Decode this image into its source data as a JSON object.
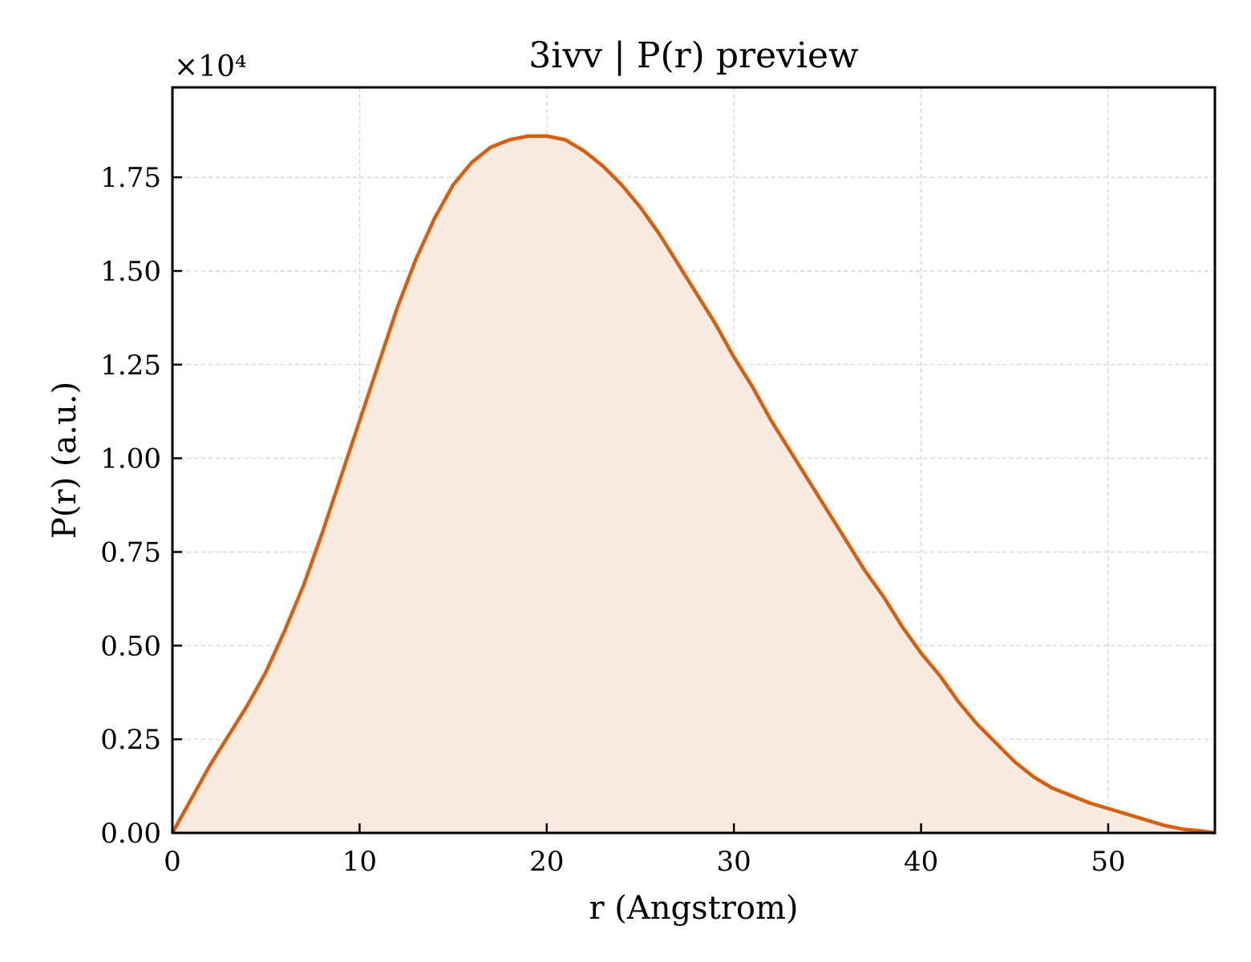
{
  "chart_data": {
    "type": "area",
    "title": "3ivv | P(r) preview",
    "xlabel": "r (Angstrom)",
    "ylabel": "P(r) (a.u.)",
    "y_offset_label": "×10⁴",
    "y_scale": 10000,
    "xlim": [
      0,
      55.7
    ],
    "ylim": [
      0,
      1.99
    ],
    "xticks": [
      0,
      10,
      20,
      30,
      40,
      50
    ],
    "xtick_labels": [
      "0",
      "10",
      "20",
      "30",
      "40",
      "50"
    ],
    "yticks": [
      0,
      0.25,
      0.5,
      0.75,
      1.0,
      1.25,
      1.5,
      1.75
    ],
    "ytick_labels": [
      "0.00",
      "0.25",
      "0.50",
      "0.75",
      "1.00",
      "1.25",
      "1.50",
      "1.75"
    ],
    "grid": true,
    "legend": "none",
    "line_color": "#d95f0e",
    "fill_color": "#f9eadf",
    "series": [
      {
        "x": [
          0,
          1,
          2,
          3,
          4,
          5,
          6,
          7,
          8,
          9,
          10,
          11,
          12,
          13,
          14,
          15,
          16,
          17,
          18,
          19,
          20,
          21,
          22,
          23,
          24,
          25,
          26,
          27,
          28,
          29,
          30,
          31,
          32,
          33,
          34,
          35,
          36,
          37,
          38,
          39,
          40,
          41,
          42,
          43,
          44,
          45,
          46,
          47,
          48,
          49,
          50,
          51,
          52,
          53,
          54,
          55,
          55.7
        ],
        "y": [
          0.0,
          0.09,
          0.18,
          0.26,
          0.34,
          0.43,
          0.54,
          0.66,
          0.8,
          0.95,
          1.1,
          1.25,
          1.4,
          1.53,
          1.64,
          1.73,
          1.79,
          1.83,
          1.85,
          1.86,
          1.86,
          1.85,
          1.82,
          1.78,
          1.73,
          1.67,
          1.6,
          1.52,
          1.44,
          1.36,
          1.27,
          1.19,
          1.1,
          1.02,
          0.94,
          0.86,
          0.78,
          0.7,
          0.63,
          0.55,
          0.48,
          0.42,
          0.35,
          0.29,
          0.24,
          0.19,
          0.15,
          0.12,
          0.1,
          0.08,
          0.065,
          0.05,
          0.035,
          0.02,
          0.01,
          0.005,
          0.0
        ]
      }
    ]
  }
}
